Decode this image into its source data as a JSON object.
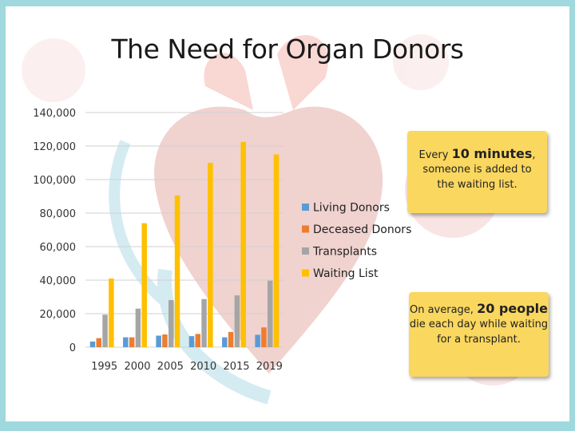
{
  "slide": {
    "title": "The Need for Organ Donors",
    "note_top": {
      "line1_pre": "Every ",
      "line1_bold": "10 minutes",
      "line1_post": ",",
      "line2": "someone is added to the waiting list."
    },
    "note_bottom": {
      "line1_pre": "On average, ",
      "line1_bold": "20 people",
      "line1_post": " die each day while waiting for a transplant."
    }
  },
  "chart_data": {
    "type": "bar",
    "categories": [
      "1995",
      "2000",
      "2005",
      "2010",
      "2015",
      "2019"
    ],
    "series": [
      {
        "name": "Living Donors",
        "color": "#5b9bd5",
        "values": [
          3400,
          5900,
          6900,
          6600,
          5900,
          7400
        ]
      },
      {
        "name": "Deceased Donors",
        "color": "#ed7d31",
        "values": [
          5400,
          5900,
          7600,
          7900,
          9100,
          11800
        ]
      },
      {
        "name": "Transplants",
        "color": "#a5a5a5",
        "values": [
          19400,
          23000,
          28100,
          28700,
          30900,
          39700
        ]
      },
      {
        "name": "Waiting List",
        "color": "#ffc000",
        "values": [
          41000,
          74000,
          90500,
          110000,
          122500,
          115000
        ]
      }
    ],
    "yticks": [
      "140,000",
      "120,000",
      "100,000",
      "80,000",
      "60,000",
      "40,000",
      "20,000",
      "0"
    ],
    "ylim": [
      0,
      140000
    ],
    "xlabel": "",
    "ylabel": "",
    "legend_position": "right",
    "grid": true
  }
}
